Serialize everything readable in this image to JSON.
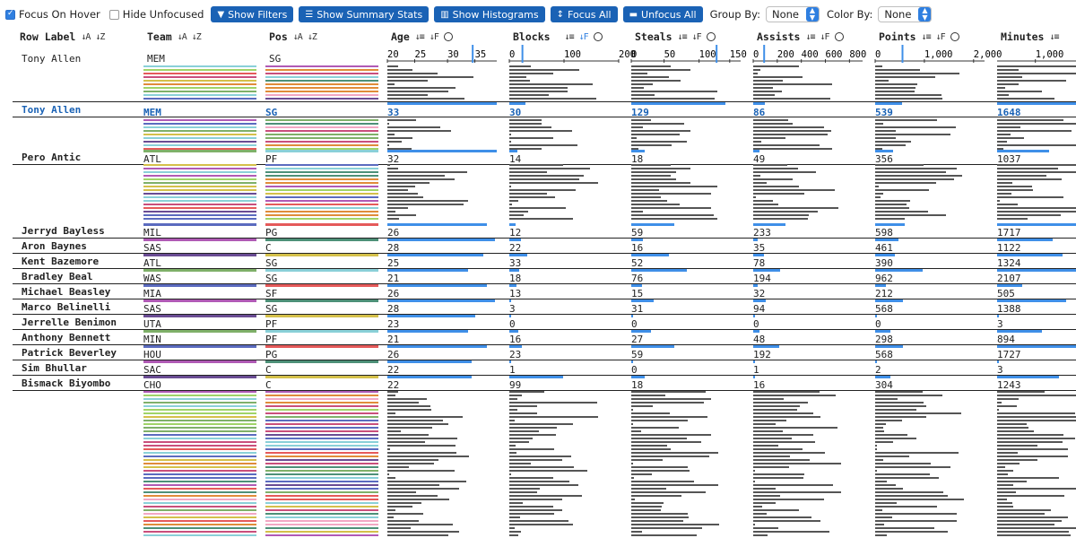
{
  "toolbar": {
    "focus_on_hover": {
      "label": "Focus On Hover",
      "checked": true
    },
    "hide_unfocused": {
      "label": "Hide Unfocused",
      "checked": false
    },
    "buttons": [
      {
        "label": "Show Filters",
        "icon": "filter-icon"
      },
      {
        "label": "Show Summary Stats",
        "icon": "list-icon"
      },
      {
        "label": "Show Histograms",
        "icon": "histogram-icon"
      },
      {
        "label": "Focus All",
        "icon": "focus-icon"
      },
      {
        "label": "Unfocus All",
        "icon": "minus-icon"
      }
    ],
    "group_by": {
      "label": "Group By:",
      "value": "None"
    },
    "color_by": {
      "label": "Color By:",
      "value": "None"
    }
  },
  "columns": [
    {
      "name": "Row Label",
      "type": "text"
    },
    {
      "name": "Team",
      "type": "category"
    },
    {
      "name": "Pos",
      "type": "category"
    },
    {
      "name": "Age",
      "type": "number",
      "ticks": [
        "20",
        "25",
        "30",
        "35"
      ]
    },
    {
      "name": "Blocks",
      "type": "number",
      "ticks": [
        "0",
        "100",
        "200"
      ],
      "sorted": true
    },
    {
      "name": "Steals",
      "type": "number",
      "ticks": [
        "0",
        "50",
        "100",
        "150"
      ]
    },
    {
      "name": "Assists",
      "type": "number",
      "ticks": [
        "0",
        "200",
        "400",
        "600",
        "800"
      ]
    },
    {
      "name": "Points",
      "type": "number",
      "ticks": [
        "0",
        "1,000",
        "2,000"
      ]
    },
    {
      "name": "Minutes",
      "type": "number",
      "ticks": [
        "1,000",
        "2,0"
      ]
    }
  ],
  "hover_row": {
    "label": "Tony Allen",
    "team": "MEM",
    "pos": "SG"
  },
  "focused_row": {
    "label": "Tony Allen",
    "team": "MEM",
    "pos": "SG",
    "age": "33",
    "blocks": "30",
    "steals": "129",
    "assists": "86",
    "points": "539",
    "minutes": "1648"
  },
  "rows": [
    {
      "label": "Pero Antic",
      "team": "ATL",
      "pos": "PF",
      "age": "32",
      "blocks": "14",
      "steals": "18",
      "assists": "49",
      "points": "356",
      "minutes": "1037"
    },
    {
      "label": "Jerryd Bayless",
      "team": "MIL",
      "pos": "PG",
      "age": "26",
      "blocks": "12",
      "steals": "59",
      "assists": "233",
      "points": "598",
      "minutes": "1717"
    },
    {
      "label": "Aron Baynes",
      "team": "SAS",
      "pos": "C",
      "age": "28",
      "blocks": "22",
      "steals": "16",
      "assists": "35",
      "points": "461",
      "minutes": "1122"
    },
    {
      "label": "Kent Bazemore",
      "team": "ATL",
      "pos": "SG",
      "age": "25",
      "blocks": "33",
      "steals": "52",
      "assists": "78",
      "points": "390",
      "minutes": "1324"
    },
    {
      "label": "Bradley Beal",
      "team": "WAS",
      "pos": "SG",
      "age": "21",
      "blocks": "18",
      "steals": "76",
      "assists": "194",
      "points": "962",
      "minutes": "2107"
    },
    {
      "label": "Michael Beasley",
      "team": "MIA",
      "pos": "SF",
      "age": "26",
      "blocks": "13",
      "steals": "15",
      "assists": "32",
      "points": "212",
      "minutes": "505"
    },
    {
      "label": "Marco Belinelli",
      "team": "SAS",
      "pos": "SG",
      "age": "28",
      "blocks": "3",
      "steals": "31",
      "assists": "94",
      "points": "568",
      "minutes": "1388"
    },
    {
      "label": "Jerrelle Benimon",
      "team": "UTA",
      "pos": "PF",
      "age": "23",
      "blocks": "0",
      "steals": "0",
      "assists": "0",
      "points": "0",
      "minutes": "3"
    },
    {
      "label": "Anthony Bennett",
      "team": "MIN",
      "pos": "PF",
      "age": "21",
      "blocks": "16",
      "steals": "27",
      "assists": "48",
      "points": "298",
      "minutes": "894"
    },
    {
      "label": "Patrick Beverley",
      "team": "HOU",
      "pos": "PG",
      "age": "26",
      "blocks": "23",
      "steals": "59",
      "assists": "192",
      "points": "568",
      "minutes": "1727"
    },
    {
      "label": "Sim Bhullar",
      "team": "SAC",
      "pos": "C",
      "age": "22",
      "blocks": "1",
      "steals": "0",
      "assists": "1",
      "points": "2",
      "minutes": "3"
    },
    {
      "label": "Bismack Biyombo",
      "team": "CHO",
      "pos": "C",
      "age": "22",
      "blocks": "99",
      "steals": "18",
      "assists": "16",
      "points": "304",
      "minutes": "1243"
    }
  ],
  "colors": {
    "accent": "#1a62b5",
    "bar_blue": "#3f8fe8",
    "gray_bar": "#555555"
  }
}
